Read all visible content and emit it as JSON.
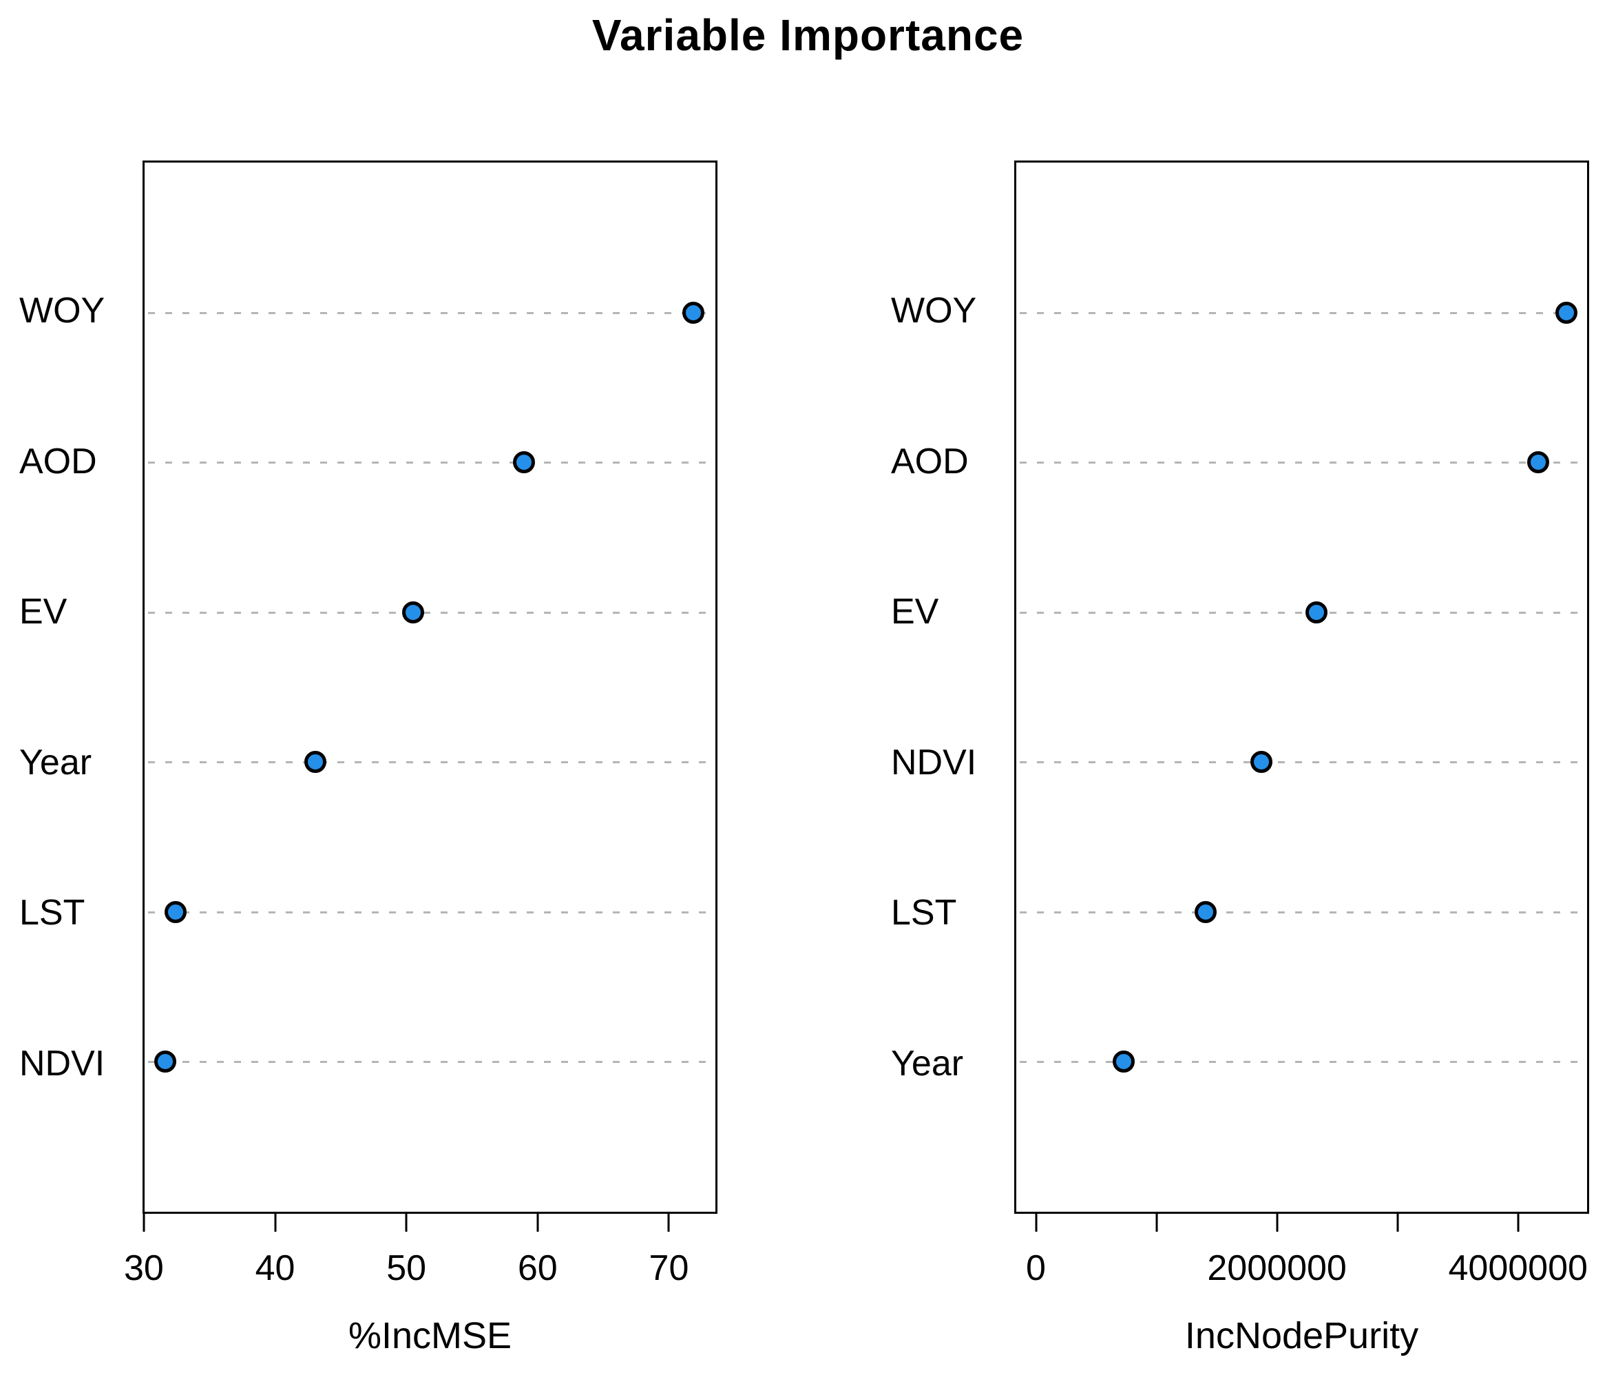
{
  "title": "Variable Importance",
  "style": {
    "point_fill": "#2590e9",
    "point_stroke": "#000000",
    "grid_color": "#b5b5b5",
    "background": "#ffffff",
    "text_color": "#000000"
  },
  "chart_data": [
    {
      "type": "scatter",
      "subtype": "dot-plot",
      "title": "Variable Importance",
      "xlabel": "%IncMSE",
      "ylabel": "",
      "legend": "none",
      "grid": "horizontal-dotted",
      "categories": [
        "WOY",
        "AOD",
        "EV",
        "Year",
        "LST",
        "NDVI"
      ],
      "values": [
        72,
        59,
        50.5,
        43,
        32.3,
        31.5
      ],
      "xlim": [
        29.9,
        73.7
      ],
      "xticks": [
        {
          "value": 30,
          "label": "30"
        },
        {
          "value": 40,
          "label": "40"
        },
        {
          "value": 50,
          "label": "50"
        },
        {
          "value": 60,
          "label": "60"
        },
        {
          "value": 70,
          "label": "70"
        }
      ]
    },
    {
      "type": "scatter",
      "subtype": "dot-plot",
      "title": "Variable Importance",
      "xlabel": "IncNodePurity",
      "ylabel": "",
      "legend": "none",
      "grid": "horizontal-dotted",
      "categories": [
        "WOY",
        "AOD",
        "EV",
        "NDVI",
        "LST",
        "Year"
      ],
      "values": [
        4420000,
        4180000,
        2330000,
        1870000,
        1400000,
        720000
      ],
      "xlim": [
        -180000,
        4590000
      ],
      "xticks": [
        {
          "value": 0,
          "label": "0"
        },
        {
          "value": 1000000,
          "label": ""
        },
        {
          "value": 2000000,
          "label": "2000000"
        },
        {
          "value": 3000000,
          "label": ""
        },
        {
          "value": 4000000,
          "label": "4000000"
        }
      ]
    }
  ]
}
